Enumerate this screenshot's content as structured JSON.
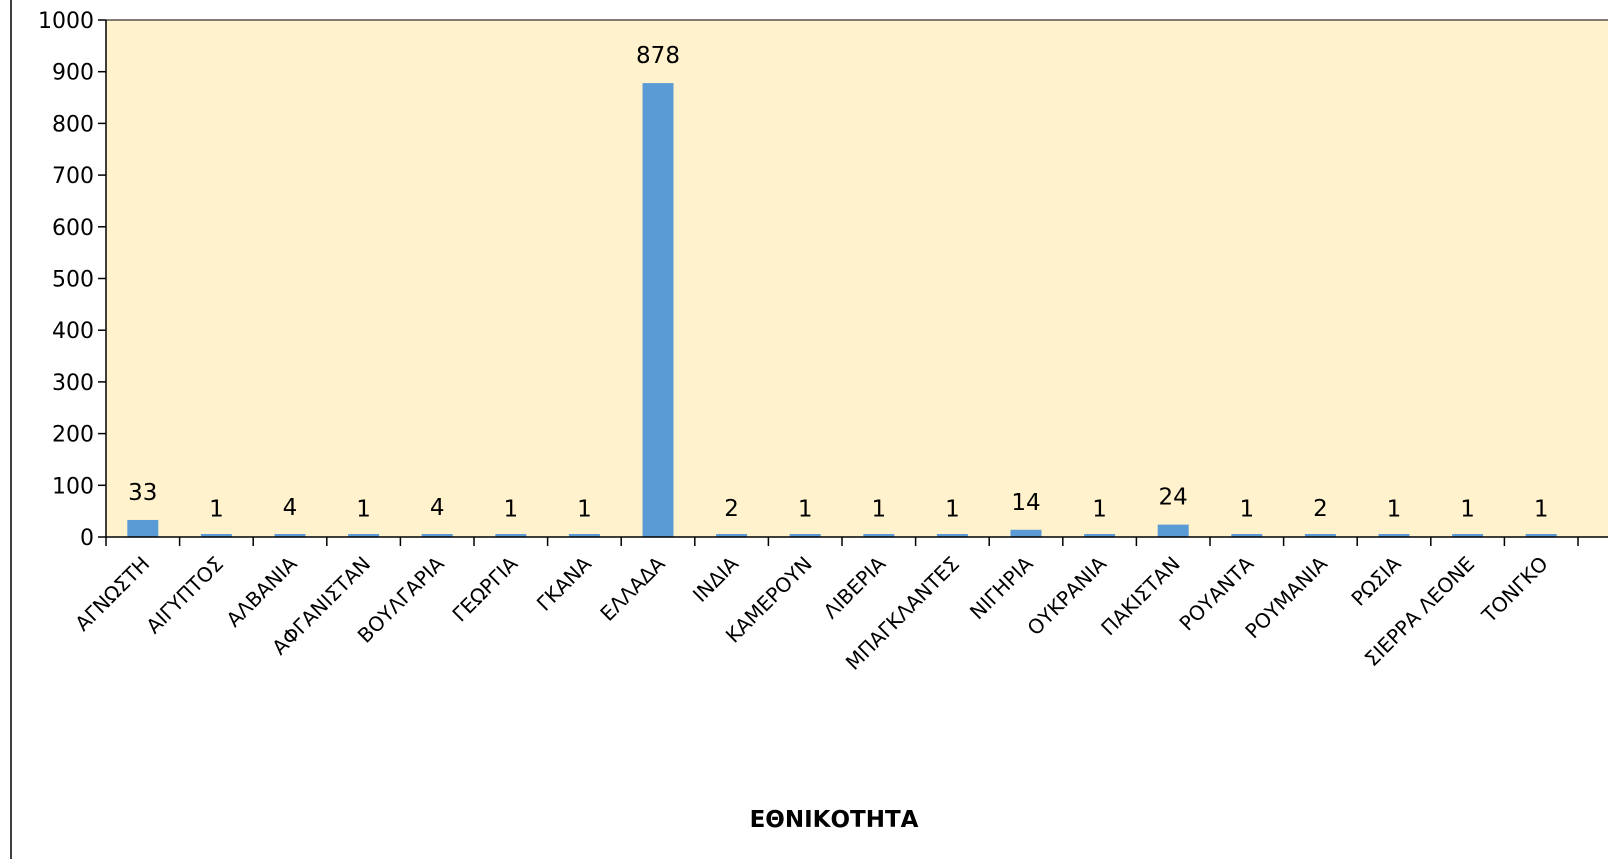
{
  "chart_data": {
    "type": "bar",
    "title": "",
    "xlabel": "ΕΘΝΙΚΟΤΗΤΑ",
    "ylabel": "",
    "ylim": [
      0,
      1000
    ],
    "yticks": [
      0,
      100,
      200,
      300,
      400,
      500,
      600,
      700,
      800,
      900,
      1000
    ],
    "grid": false,
    "legend": "none",
    "categories": [
      "ΑΓΝΩΣΤΗ",
      "ΑΙΓΥΠΤΟΣ",
      "ΑΛΒΑΝΙΑ",
      "ΑΦΓΑΝΙΣΤΑΝ",
      "ΒΟΥΛΓΑΡΙΑ",
      "ΓΕΩΡΓΙΑ",
      "ΓΚΑΝΑ",
      "ΕΛΛΑΔΑ",
      "ΙΝΔΙΑ",
      "ΚΑΜΕΡΟΥΝ",
      "ΛΙΒΕΡΙΑ",
      "ΜΠΑΓΚΛΑΝΤΕΣ",
      "ΝΙΓΗΡΙΑ",
      "ΟΥΚΡΑΝΙΑ",
      "ΠΑΚΙΣΤΑΝ",
      "ΡΟΥΑΝΤΑ",
      "ΡΟΥΜΑΝΙΑ",
      "ΡΩΣΙΑ",
      "ΣΙΕΡΡΑ ΛΕΟΝΕ",
      "ΤΟΝΓΚΟ"
    ],
    "values": [
      33,
      1,
      4,
      1,
      4,
      1,
      1,
      878,
      2,
      1,
      1,
      1,
      14,
      1,
      24,
      1,
      2,
      1,
      1,
      1
    ],
    "colors": {
      "bar": "#5b9bd5",
      "plot_background": "#fff2cc",
      "axis": "#000000"
    }
  }
}
